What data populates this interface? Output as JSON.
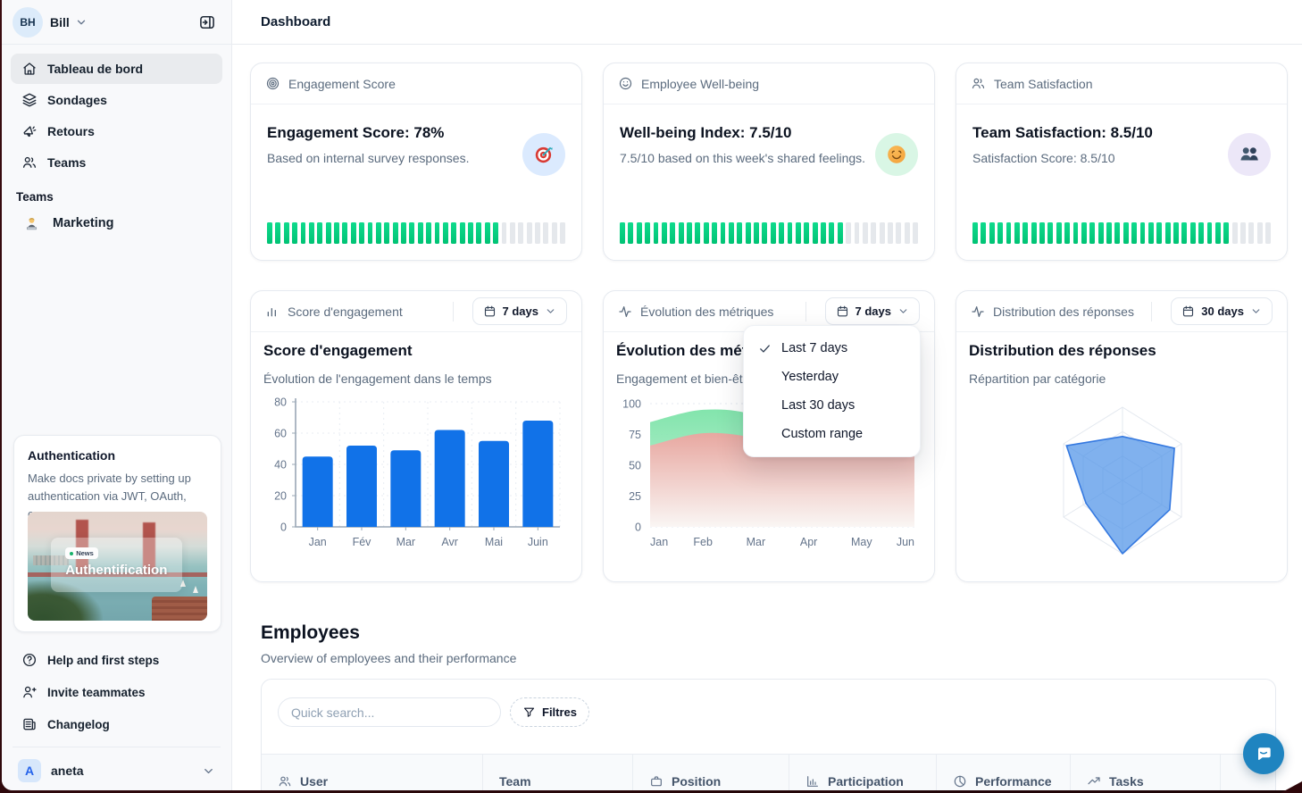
{
  "header": {
    "title": "Dashboard"
  },
  "sidebar": {
    "user": {
      "initials": "BH",
      "name": "Bill"
    },
    "nav": [
      {
        "label": "Tableau de bord",
        "icon": "home-icon",
        "active": true
      },
      {
        "label": "Sondages",
        "icon": "layers-icon",
        "active": false
      },
      {
        "label": "Retours",
        "icon": "megaphone-icon",
        "active": false
      },
      {
        "label": "Teams",
        "icon": "users-icon",
        "active": false
      }
    ],
    "section_label": "Teams",
    "teams": [
      {
        "label": "Marketing",
        "icon": "technologist-emoji"
      }
    ],
    "promo": {
      "title": "Authentication",
      "body": "Make docs private by setting up authentication via JWT, OAuth, or...",
      "badge": "News",
      "image_caption": "Authentification"
    },
    "footer": [
      {
        "label": "Help and first steps",
        "icon": "help-circle-icon"
      },
      {
        "label": "Invite teammates",
        "icon": "user-plus-icon"
      },
      {
        "label": "Changelog",
        "icon": "changelog-icon"
      }
    ],
    "workspace": {
      "initial": "A",
      "name": "aneta"
    }
  },
  "stat_cards": [
    {
      "header": "Engagement Score",
      "header_icon": "target-icon",
      "title": "Engagement Score: 78%",
      "subtitle": "Based on internal survey responses.",
      "emoji_icon": "dart-target-emoji",
      "emoji_bg": "#dbeafe",
      "progress_pct": 78
    },
    {
      "header": "Employee Well-being",
      "header_icon": "smile-icon",
      "title": "Well-being Index: 7.5/10",
      "subtitle": "7.5/10 based on this week's shared feelings.",
      "emoji_icon": "smiling-face-emoji",
      "emoji_bg": "#d9f6e5",
      "progress_pct": 75
    },
    {
      "header": "Team Satisfaction",
      "header_icon": "users-icon",
      "title": "Team Satisfaction: 8.5/10",
      "subtitle": "Satisfaction Score: 8.5/10",
      "emoji_icon": "busts-people-emoji",
      "emoji_bg": "#ece7f8",
      "progress_pct": 85
    }
  ],
  "chart_cards": [
    {
      "header": "Score d'engagement",
      "header_icon": "column-chart-icon",
      "range": "7 days",
      "title": "Score d'engagement",
      "subtitle": "Évolution de l'engagement dans le temps"
    },
    {
      "header": "Évolution des métriques",
      "header_icon": "activity-icon",
      "range": "7 days",
      "title": "Évolution des métriques",
      "subtitle": "Engagement et bien-être au fil du temps"
    },
    {
      "header": "Distribution des réponses",
      "header_icon": "activity-icon",
      "range": "30 days",
      "title": "Distribution des réponses",
      "subtitle": "Répartition par catégorie"
    }
  ],
  "dropdown_menu": {
    "items": [
      "Last 7 days",
      "Yesterday",
      "Last 30 days",
      "Custom range"
    ],
    "selected_index": 0
  },
  "employees": {
    "title": "Employees",
    "subtitle": "Overview of employees and their performance",
    "search_placeholder": "Quick search...",
    "filter_label": "Filtres",
    "columns": [
      {
        "label": "User",
        "icon": "users-icon"
      },
      {
        "label": "Team",
        "icon": null
      },
      {
        "label": "Position",
        "icon": "briefcase-icon"
      },
      {
        "label": "Participation",
        "icon": "column-chart-icon"
      },
      {
        "label": "Performance",
        "icon": "pie-chart-icon"
      },
      {
        "label": "Tasks",
        "icon": "trend-up-icon"
      }
    ]
  },
  "chart_data": [
    {
      "type": "bar",
      "title": "Score d'engagement",
      "categories": [
        "Jan",
        "Fév",
        "Mar",
        "Avr",
        "Mai",
        "Juin"
      ],
      "values": [
        45,
        52,
        49,
        62,
        55,
        68
      ],
      "ylim": [
        0,
        80
      ],
      "yticks": [
        0,
        20,
        40,
        60,
        80
      ],
      "bar_color": "#1172e8",
      "grid": true
    },
    {
      "type": "area",
      "title": "Évolution des métriques",
      "x": [
        "Jan",
        "Feb",
        "Mar",
        "Apr",
        "May",
        "Jun"
      ],
      "series": [
        {
          "name": "green-area",
          "color_top": "#7ce3a8",
          "color_bottom": "#cdf3de",
          "values": [
            85,
            95,
            90,
            63,
            67,
            66
          ]
        },
        {
          "name": "red-area",
          "color_top": "#eca49f",
          "color_bottom": "#fcf6f5",
          "values": [
            66,
            76,
            72,
            60,
            64,
            65
          ]
        }
      ],
      "ylim": [
        0,
        100
      ],
      "yticks": [
        0,
        25,
        50,
        75,
        100
      ],
      "grid": true
    },
    {
      "type": "radar",
      "title": "Distribution des réponses",
      "axes": 6,
      "max": 1,
      "values": [
        0.6,
        0.88,
        0.8,
        1.0,
        0.62,
        0.95
      ],
      "fill": "#4f93e8",
      "grid_levels": 3
    }
  ],
  "colors": {
    "progress_green": "#00c678",
    "progress_gray": "#e5e8ec",
    "bar_blue": "#1172e8",
    "radar_blue": "#4f93e8",
    "area_green": "#7ce3a8",
    "area_red": "#eca49f",
    "intercom_blue": "#1f84c0",
    "sidebar_bg": "#f8f9fb"
  },
  "chat": {
    "tooltip": "chat-launcher"
  }
}
